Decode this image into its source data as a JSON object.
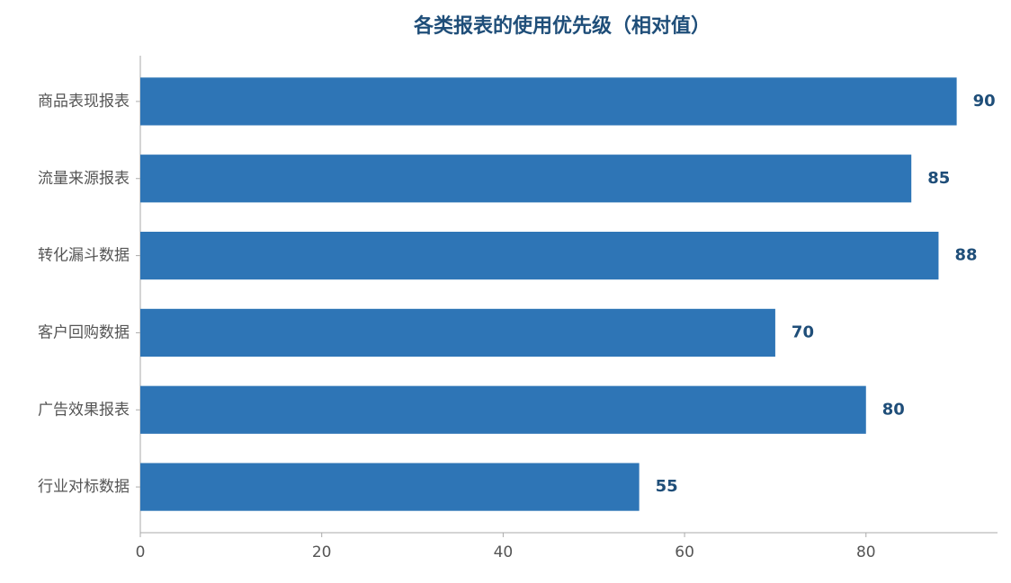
{
  "chart_data": {
    "type": "hbar",
    "title": "各类报表的使用优先级（相对值）",
    "categories": [
      "商品表现报表",
      "流量来源报表",
      "转化漏斗数据",
      "客户回购数据",
      "广告效果报表",
      "行业对标数据"
    ],
    "values": [
      90,
      85,
      88,
      70,
      80,
      55
    ],
    "color": "#2e75b6",
    "xlim": [
      0,
      94.5
    ],
    "xticks": [
      0,
      20,
      40,
      60,
      80
    ],
    "grid": false
  }
}
